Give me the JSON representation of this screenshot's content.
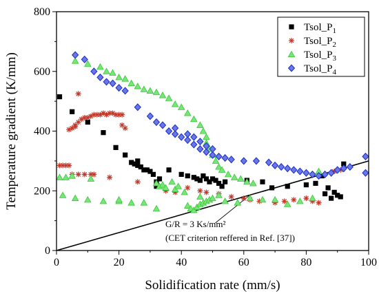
{
  "chart_data": {
    "type": "scatter",
    "title": "",
    "xlabel": "Solidification rate (mm/s)",
    "ylabel": "Temperature gradient (K/mm)",
    "xlim": [
      0,
      100
    ],
    "ylim": [
      0,
      800
    ],
    "xticks": [
      0,
      20,
      40,
      60,
      80,
      100
    ],
    "yticks": [
      0,
      200,
      400,
      600,
      800
    ],
    "grid": false,
    "legend": {
      "position": "top-right",
      "entries": [
        {
          "base": "Tsol_P",
          "sub": "1"
        },
        {
          "base": "Tsol_P",
          "sub": "2"
        },
        {
          "base": "Tsol_P",
          "sub": "3"
        },
        {
          "base": "Tsol_P",
          "sub": "4"
        }
      ]
    },
    "series": [
      {
        "name": "Tsol_P1",
        "color": "#000000",
        "marker": "square",
        "points": [
          [
            1,
            515
          ],
          [
            5,
            465
          ],
          [
            10,
            430
          ],
          [
            15,
            395
          ],
          [
            19,
            345
          ],
          [
            22,
            320
          ],
          [
            24,
            295
          ],
          [
            25,
            290
          ],
          [
            26,
            285
          ],
          [
            26,
            300
          ],
          [
            27,
            280
          ],
          [
            28,
            270
          ],
          [
            29,
            270
          ],
          [
            30,
            265
          ],
          [
            31,
            255
          ],
          [
            32,
            230
          ],
          [
            32,
            215
          ],
          [
            33,
            240
          ],
          [
            36,
            270
          ],
          [
            40,
            255
          ],
          [
            42,
            250
          ],
          [
            44,
            245
          ],
          [
            45,
            240
          ],
          [
            46,
            235
          ],
          [
            47,
            250
          ],
          [
            48,
            240
          ],
          [
            49,
            230
          ],
          [
            50,
            240
          ],
          [
            51,
            235
          ],
          [
            52,
            225
          ],
          [
            53,
            215
          ],
          [
            54,
            230
          ],
          [
            61,
            235
          ],
          [
            66,
            230
          ],
          [
            69,
            210
          ],
          [
            74,
            215
          ],
          [
            80,
            220
          ],
          [
            83,
            225
          ],
          [
            85,
            250
          ],
          [
            86,
            190
          ],
          [
            87,
            210
          ],
          [
            88,
            175
          ],
          [
            89,
            195
          ],
          [
            90,
            185
          ],
          [
            91,
            180
          ],
          [
            92,
            290
          ]
        ]
      },
      {
        "name": "Tsol_P2",
        "color": "#c0392b",
        "marker": "asterisk",
        "points": [
          [
            1,
            285
          ],
          [
            2,
            285
          ],
          [
            3,
            285
          ],
          [
            4,
            285
          ],
          [
            4,
            405
          ],
          [
            5,
            410
          ],
          [
            6,
            420
          ],
          [
            6,
            415
          ],
          [
            7,
            430
          ],
          [
            7,
            525
          ],
          [
            8,
            440
          ],
          [
            9,
            445
          ],
          [
            10,
            445
          ],
          [
            11,
            450
          ],
          [
            12,
            455
          ],
          [
            13,
            455
          ],
          [
            14,
            455
          ],
          [
            15,
            460
          ],
          [
            16,
            455
          ],
          [
            17,
            460
          ],
          [
            18,
            460
          ],
          [
            19,
            455
          ],
          [
            20,
            455
          ],
          [
            21,
            455
          ],
          [
            21,
            420
          ],
          [
            22,
            410
          ],
          [
            5,
            255
          ],
          [
            7,
            255
          ],
          [
            9,
            255
          ],
          [
            11,
            255
          ],
          [
            12,
            255
          ],
          [
            17,
            245
          ],
          [
            26,
            230
          ],
          [
            35,
            200
          ],
          [
            38,
            195
          ],
          [
            42,
            210
          ],
          [
            46,
            200
          ],
          [
            48,
            195
          ],
          [
            52,
            190
          ],
          [
            56,
            180
          ],
          [
            60,
            175
          ],
          [
            62,
            170
          ],
          [
            65,
            165
          ],
          [
            70,
            160
          ],
          [
            73,
            165
          ],
          [
            76,
            170
          ],
          [
            80,
            175
          ],
          [
            82,
            165
          ],
          [
            84,
            160
          ],
          [
            89,
            265
          ],
          [
            91,
            270
          ]
        ]
      },
      {
        "name": "Tsol_P3",
        "color": "#33cc33",
        "marker": "triangle",
        "points": [
          [
            6,
            635
          ],
          [
            10,
            625
          ],
          [
            14,
            615
          ],
          [
            16,
            600
          ],
          [
            18,
            595
          ],
          [
            20,
            580
          ],
          [
            22,
            575
          ],
          [
            24,
            560
          ],
          [
            26,
            550
          ],
          [
            28,
            540
          ],
          [
            30,
            535
          ],
          [
            32,
            530
          ],
          [
            34,
            520
          ],
          [
            36,
            510
          ],
          [
            38,
            490
          ],
          [
            40,
            480
          ],
          [
            42,
            460
          ],
          [
            44,
            440
          ],
          [
            46,
            420
          ],
          [
            47,
            400
          ],
          [
            48,
            380
          ],
          [
            48,
            360
          ],
          [
            49,
            340
          ],
          [
            50,
            320
          ],
          [
            51,
            300
          ],
          [
            52,
            280
          ],
          [
            53,
            270
          ],
          [
            55,
            255
          ],
          [
            57,
            245
          ],
          [
            59,
            240
          ],
          [
            61,
            230
          ],
          [
            63,
            225
          ],
          [
            1,
            245
          ],
          [
            3,
            245
          ],
          [
            5,
            250
          ],
          [
            11,
            240
          ],
          [
            2,
            185
          ],
          [
            6,
            175
          ],
          [
            10,
            170
          ],
          [
            15,
            165
          ],
          [
            20,
            165
          ],
          [
            24,
            160
          ],
          [
            28,
            160
          ],
          [
            32,
            225
          ],
          [
            33,
            215
          ],
          [
            34,
            220
          ],
          [
            35,
            210
          ],
          [
            37,
            230
          ],
          [
            38,
            205
          ],
          [
            39,
            215
          ],
          [
            41,
            195
          ],
          [
            42,
            150
          ],
          [
            43,
            140
          ],
          [
            44,
            135
          ],
          [
            45,
            145
          ],
          [
            46,
            155
          ],
          [
            47,
            160
          ],
          [
            48,
            165
          ],
          [
            49,
            170
          ],
          [
            50,
            175
          ],
          [
            52,
            185
          ],
          [
            54,
            165
          ],
          [
            58,
            160
          ],
          [
            62,
            175
          ],
          [
            66,
            170
          ],
          [
            70,
            170
          ],
          [
            74,
            155
          ],
          [
            78,
            165
          ],
          [
            82,
            175
          ],
          [
            84,
            265
          ],
          [
            32,
            140
          ],
          [
            20,
            170
          ],
          [
            46,
            180
          ]
        ]
      },
      {
        "name": "Tsol_P4",
        "color": "#2233cc",
        "marker": "diamond",
        "points": [
          [
            6,
            655
          ],
          [
            9,
            640
          ],
          [
            12,
            600
          ],
          [
            14,
            580
          ],
          [
            16,
            565
          ],
          [
            18,
            560
          ],
          [
            20,
            545
          ],
          [
            22,
            535
          ],
          [
            26,
            480
          ],
          [
            30,
            450
          ],
          [
            32,
            430
          ],
          [
            34,
            420
          ],
          [
            36,
            400
          ],
          [
            38,
            390
          ],
          [
            40,
            380
          ],
          [
            42,
            370
          ],
          [
            44,
            355
          ],
          [
            46,
            340
          ],
          [
            48,
            330
          ],
          [
            50,
            320
          ],
          [
            52,
            315
          ],
          [
            54,
            310
          ],
          [
            56,
            305
          ],
          [
            60,
            300
          ],
          [
            64,
            300
          ],
          [
            68,
            295
          ],
          [
            70,
            285
          ],
          [
            72,
            280
          ],
          [
            74,
            275
          ],
          [
            76,
            270
          ],
          [
            78,
            265
          ],
          [
            80,
            260
          ],
          [
            82,
            255
          ],
          [
            84,
            250
          ],
          [
            86,
            255
          ],
          [
            88,
            260
          ],
          [
            90,
            270
          ],
          [
            92,
            275
          ],
          [
            94,
            280
          ],
          [
            99,
            315
          ],
          [
            99,
            260
          ],
          [
            42,
            390
          ],
          [
            44,
            380
          ],
          [
            46,
            365
          ],
          [
            48,
            350
          ],
          [
            50,
            340
          ],
          [
            38,
            410
          ]
        ]
      }
    ],
    "reference_line": {
      "label": "G/R = 3 Ks/mm²",
      "note": "(CET criterion reffered in Ref. [37])",
      "slope": 3,
      "x_range": [
        0,
        100
      ]
    }
  }
}
